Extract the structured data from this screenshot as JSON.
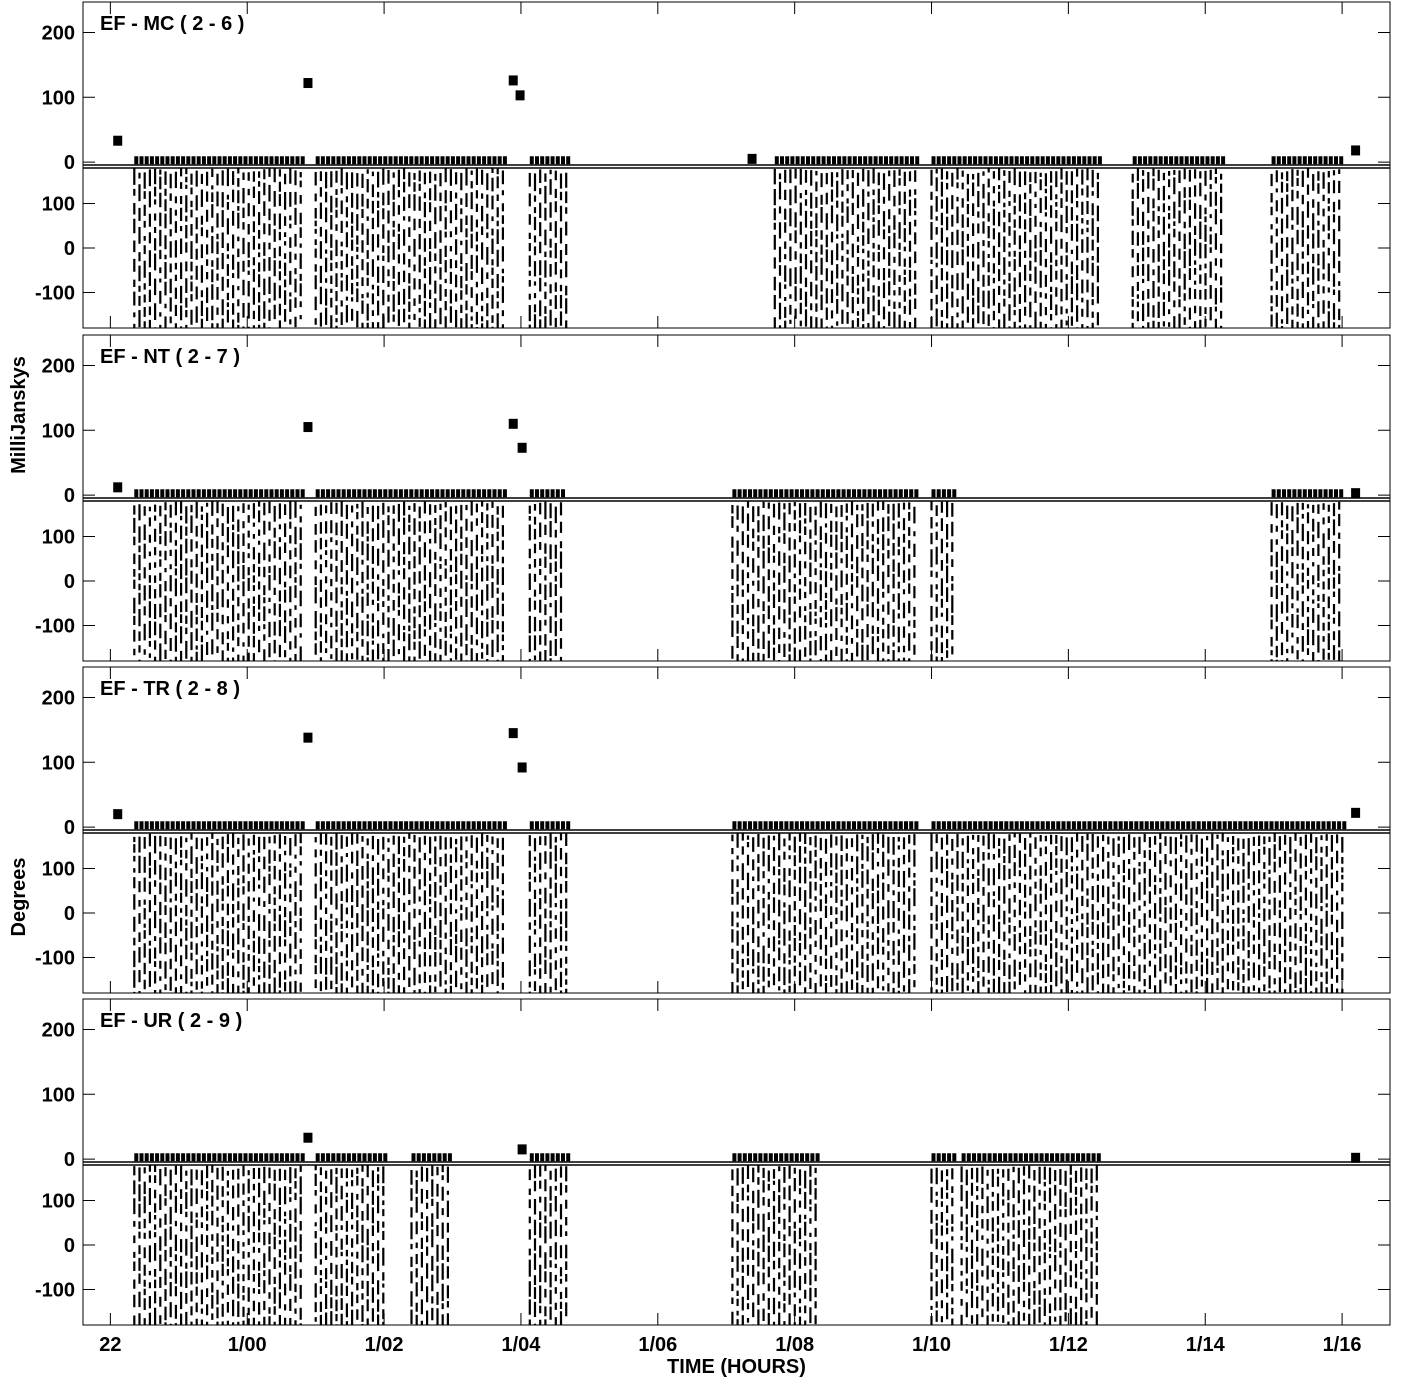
{
  "chart_data": [
    {
      "type": "vplot",
      "title": "EF - MC ( 2 - 6 )",
      "xlim": [
        21.6,
        40.7
      ],
      "ylim": [
        -6,
        247
      ],
      "yticks": [
        0,
        100,
        200
      ],
      "y2lim": [
        -180,
        180
      ],
      "y2ticks": [
        -100,
        0,
        100
      ],
      "scans": {
        "start": [
          22.35,
          25.0,
          28.13,
          31.71,
          34.0,
          36.94,
          38.97
        ],
        "end": [
          24.79,
          27.79,
          28.68,
          33.78,
          36.46,
          38.24,
          40.01
        ],
        "amplitude": [
          3,
          3,
          3,
          3,
          3,
          3,
          3
        ]
      },
      "points": {
        "x": [
          22.1,
          24.88,
          27.88,
          27.98,
          31.37,
          40.19
        ],
        "values": [
          33,
          122,
          126,
          103,
          5,
          18
        ]
      }
    },
    {
      "type": "vplot",
      "title": "EF - NT ( 2 - 7 )",
      "ylabel": "MilliJanskys",
      "xlim": [
        21.6,
        40.7
      ],
      "ylim": [
        -6,
        247
      ],
      "yticks": [
        0,
        100,
        200
      ],
      "y2lim": [
        -180,
        180
      ],
      "y2ticks": [
        -100,
        0,
        100
      ],
      "scans": {
        "start": [
          22.35,
          25.0,
          28.13,
          31.09,
          34.0,
          38.97
        ],
        "end": [
          24.79,
          27.79,
          28.59,
          33.78,
          34.32,
          40.01
        ],
        "amplitude": [
          3,
          3,
          3,
          3,
          3,
          3
        ]
      },
      "points": {
        "x": [
          22.1,
          24.88,
          27.88,
          28.01,
          40.19
        ],
        "values": [
          12,
          105,
          110,
          73,
          3
        ]
      }
    },
    {
      "type": "vplot",
      "title": "EF - TR ( 2 - 8 )",
      "y2label": "Degrees",
      "xlim": [
        21.6,
        40.7
      ],
      "ylim": [
        -6,
        247
      ],
      "yticks": [
        0,
        100,
        200
      ],
      "y2lim": [
        -180,
        180
      ],
      "y2ticks": [
        -100,
        0,
        100
      ],
      "scans": {
        "start": [
          22.35,
          25.0,
          28.13,
          31.09,
          34.0
        ],
        "end": [
          24.79,
          27.79,
          28.68,
          33.78,
          40.01
        ],
        "amplitude": [
          3,
          3,
          3,
          3,
          3
        ]
      },
      "points": {
        "x": [
          22.1,
          24.88,
          27.88,
          28.01,
          40.19
        ],
        "values": [
          20,
          138,
          145,
          92,
          22
        ]
      }
    },
    {
      "type": "vplot",
      "title": "EF - UR ( 2 - 9 )",
      "xlabel": "TIME (HOURS)",
      "xlim": [
        21.6,
        40.7
      ],
      "ylim": [
        -6,
        247
      ],
      "yticks": [
        0,
        100,
        200
      ],
      "y2lim": [
        -180,
        180
      ],
      "y2ticks": [
        -100,
        0,
        100
      ],
      "xticks": [
        {
          "value": 22,
          "label": "22"
        },
        {
          "value": 24,
          "label": "1/00"
        },
        {
          "value": 26,
          "label": "1/02"
        },
        {
          "value": 28,
          "label": "1/04"
        },
        {
          "value": 30,
          "label": "1/06"
        },
        {
          "value": 32,
          "label": "1/08"
        },
        {
          "value": 34,
          "label": "1/10"
        },
        {
          "value": 36,
          "label": "1/12"
        },
        {
          "value": 38,
          "label": "1/14"
        },
        {
          "value": 40,
          "label": "1/16"
        }
      ],
      "scans": {
        "start": [
          22.35,
          25.0,
          26.4,
          28.13,
          31.09,
          34.0,
          34.44
        ],
        "end": [
          24.79,
          26.02,
          26.96,
          28.68,
          32.37,
          34.32,
          36.46
        ],
        "amplitude": [
          3,
          3,
          3,
          3,
          3,
          3,
          3
        ]
      },
      "points": {
        "x": [
          24.88,
          28.01,
          40.19
        ],
        "values": [
          33,
          15,
          2
        ]
      }
    }
  ]
}
